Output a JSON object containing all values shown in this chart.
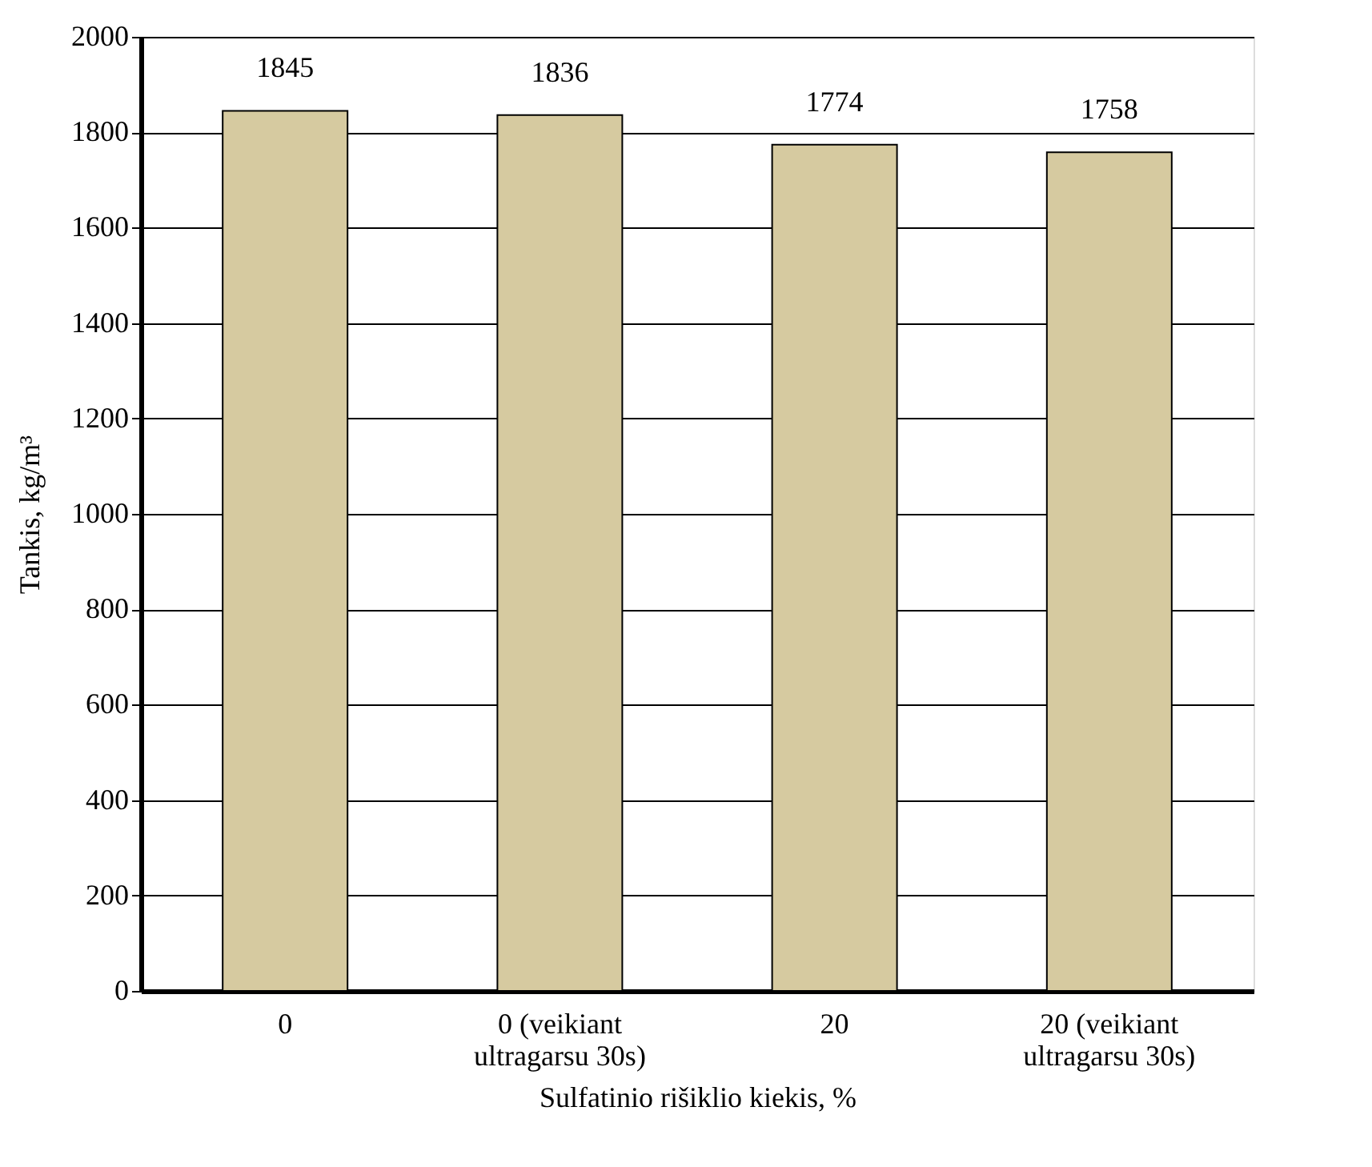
{
  "chart_data": {
    "type": "bar",
    "xlabel": "Sulfatinio rišiklio kiekis, %",
    "ylabel": "Tankis, kg/m³",
    "categories": [
      "0",
      "0 (veikiant ultragarsu 30s)",
      "20",
      "20 (veikiant ultragarsu 30s)"
    ],
    "values": [
      1845,
      1836,
      1774,
      1758
    ],
    "color": "#d6caa0",
    "ylim": [
      0,
      2000
    ],
    "yticks": [
      0,
      200,
      400,
      600,
      800,
      1000,
      1200,
      1400,
      1600,
      1800,
      2000
    ],
    "grid": "y",
    "data_labels": true
  }
}
